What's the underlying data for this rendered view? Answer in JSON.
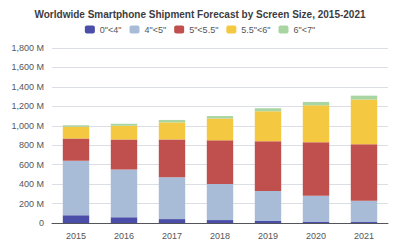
{
  "chart_data": {
    "type": "bar",
    "stacked": true,
    "title": "Worldwide Smartphone Shipment Forecast by Screen Size, 2015-2021",
    "categories": [
      "2015",
      "2016",
      "2017",
      "2018",
      "2019",
      "2020",
      "2021"
    ],
    "series": [
      {
        "name": "0\"<4\"",
        "color": "#4a4ea8",
        "values": [
          80,
          60,
          40,
          30,
          20,
          15,
          10
        ]
      },
      {
        "name": "4\"<5\"",
        "color": "#a8bcd8",
        "values": [
          560,
          490,
          430,
          370,
          310,
          265,
          220
        ]
      },
      {
        "name": "5\"<5.5\"",
        "color": "#c0504d",
        "values": [
          230,
          310,
          390,
          450,
          510,
          550,
          580
        ]
      },
      {
        "name": "5.5\"<6\"",
        "color": "#f5c842",
        "values": [
          120,
          140,
          175,
          225,
          310,
          380,
          460
        ]
      },
      {
        "name": "6\"<7\"",
        "color": "#a8d5a2",
        "values": [
          15,
          20,
          25,
          25,
          30,
          35,
          40
        ]
      }
    ],
    "ylim": [
      0,
      1800
    ],
    "yticks": [
      0,
      {
        "value": 200,
        "label": "200 M"
      },
      {
        "value": 400,
        "label": "400 M"
      },
      {
        "value": 600,
        "label": "600 M"
      },
      {
        "value": 800,
        "label": "800 M"
      },
      {
        "value": 1000,
        "label": "1,000 M"
      },
      {
        "value": 1200,
        "label": "1,200 M"
      },
      {
        "value": 1400,
        "label": "1,400 M"
      },
      {
        "value": 1600,
        "label": "1,600 M"
      },
      {
        "value": 1800,
        "label": "1,800 M"
      }
    ],
    "grid": true,
    "legend": "top"
  }
}
